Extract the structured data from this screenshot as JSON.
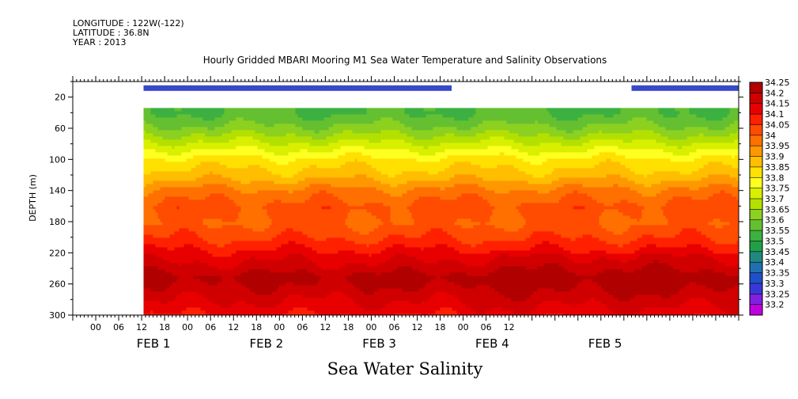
{
  "header": {
    "longitude": "LONGITUDE : 122W(-122)",
    "latitude": "LATITUDE : 36.8N",
    "year": "YEAR : 2013"
  },
  "chart_data": {
    "type": "heatmap",
    "title": "Hourly Gridded MBARI Mooring M1 Sea Water Temperature and Salinity Observations",
    "bottom_title": "Sea Water Salinity",
    "ylabel": "DEPTH (m)",
    "ylim": [
      300,
      0
    ],
    "y_ticks": [
      20,
      60,
      100,
      140,
      180,
      220,
      260,
      300
    ],
    "x_tick_labels": [
      "00",
      "06",
      "12",
      "18",
      "00",
      "06",
      "12",
      "18",
      "00",
      "06",
      "12",
      "18",
      "00",
      "06",
      "12",
      "18",
      "00",
      "06",
      "12"
    ],
    "day_labels": [
      "FEB  1",
      "FEB  2",
      "FEB  3",
      "FEB  4",
      "FEB  5"
    ],
    "colorbar": {
      "levels": [
        "34.25",
        "34.2",
        "34.15",
        "34.1",
        "34.05",
        "34",
        "33.95",
        "33.9",
        "33.85",
        "33.8",
        "33.75",
        "33.7",
        "33.65",
        "33.6",
        "33.55",
        "33.5",
        "33.45",
        "33.4",
        "33.35",
        "33.3",
        "33.25",
        "33.2"
      ],
      "colors": [
        "#b00000",
        "#d00000",
        "#e80000",
        "#ff2000",
        "#ff4c00",
        "#ff7000",
        "#ff9800",
        "#ffbe00",
        "#ffe000",
        "#ffff20",
        "#d8f000",
        "#b4e000",
        "#8cd020",
        "#64c030",
        "#3cb040",
        "#20a048",
        "#208880",
        "#2070b0",
        "#2050c8",
        "#3838d8",
        "#8020e0",
        "#c000e0"
      ]
    },
    "surface_bar": {
      "depth_m": 12,
      "segments_hours": [
        [
          6.5,
          87
        ],
        [
          134,
          162
        ]
      ],
      "color": "#3848c8"
    },
    "data_depth_range_m": [
      34,
      300
    ],
    "data_time_range_hours": [
      6.5,
      162
    ],
    "depth_profile_typical": [
      {
        "depth": 40,
        "salinity": 33.55
      },
      {
        "depth": 60,
        "salinity": 33.62
      },
      {
        "depth": 80,
        "salinity": 33.72
      },
      {
        "depth": 100,
        "salinity": 33.82
      },
      {
        "depth": 120,
        "salinity": 33.88
      },
      {
        "depth": 140,
        "salinity": 33.97
      },
      {
        "depth": 160,
        "salinity": 34.02
      },
      {
        "depth": 180,
        "salinity": 34.0
      },
      {
        "depth": 200,
        "salinity": 34.05
      },
      {
        "depth": 220,
        "salinity": 34.12
      },
      {
        "depth": 240,
        "salinity": 34.18
      },
      {
        "depth": 250,
        "salinity": 34.22
      },
      {
        "depth": 260,
        "salinity": 34.2
      },
      {
        "depth": 280,
        "salinity": 34.15
      },
      {
        "depth": 300,
        "salinity": 34.1
      }
    ]
  }
}
